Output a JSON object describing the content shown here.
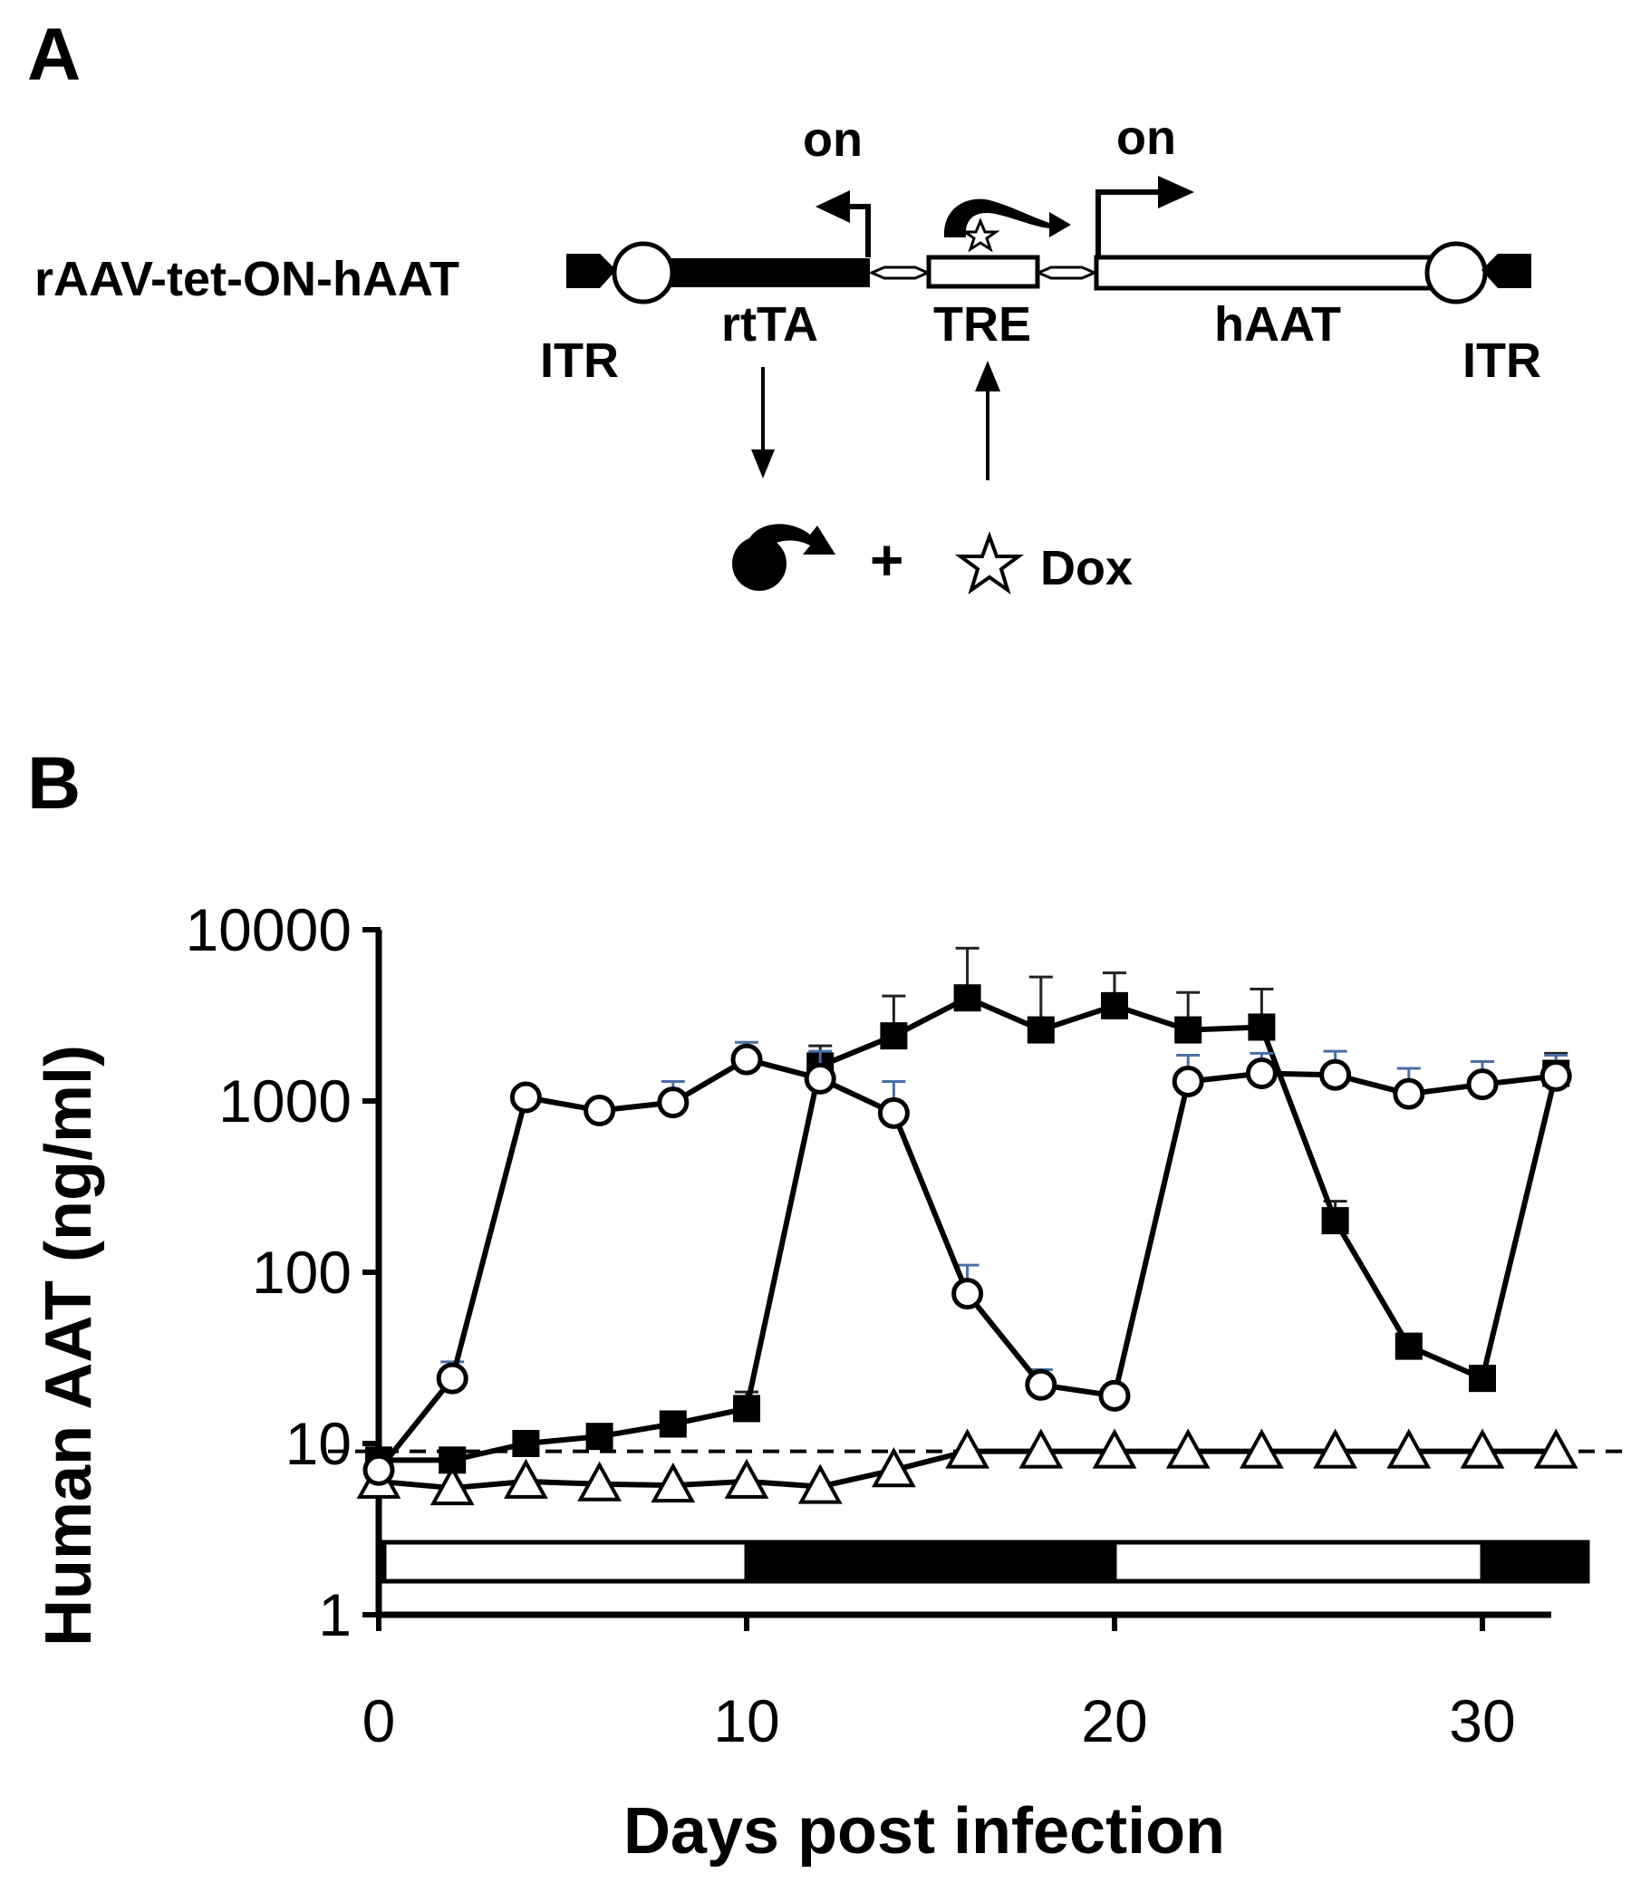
{
  "panel_a": {
    "label": "A",
    "construct_name": "rAAV-tet-ON-hAAT",
    "labels": {
      "itr_left": "ITR",
      "rtta": "rtTA",
      "tre": "TRE",
      "haat": "hAAT",
      "itr_right": "ITR",
      "on_left": "on",
      "on_right": "on",
      "plus": "+",
      "dox": "Dox"
    }
  },
  "panel_b": {
    "label": "B"
  },
  "chart_data": {
    "type": "line",
    "title": "",
    "xlabel": "Days post infection",
    "ylabel": "Human AAT (ng/ml)",
    "xlim": [
      0,
      33
    ],
    "ylim": [
      1,
      10000
    ],
    "y_scale": "log",
    "xticks": [
      0,
      10,
      20,
      30
    ],
    "xtick_labels": [
      "0",
      "10",
      "20",
      "30"
    ],
    "yticks": [
      1,
      10,
      100,
      1000,
      10000
    ],
    "ytick_labels": [
      "1",
      "10",
      "100",
      "1000",
      "10000"
    ],
    "reference_line": {
      "y": 9,
      "style": "dashed"
    },
    "series": [
      {
        "marker": "open-circle",
        "x": [
          0,
          2,
          4,
          6,
          8,
          10,
          12,
          14,
          16,
          18,
          20,
          22,
          24,
          26,
          28,
          30,
          32
        ],
        "y": [
          7,
          24,
          1050,
          880,
          980,
          1750,
          1350,
          850,
          75,
          22,
          19,
          1300,
          1450,
          1420,
          1100,
          1250,
          1400
        ],
        "err": [
          0,
          30,
          0,
          0,
          1300,
          2200,
          1950,
          1300,
          110,
          27,
          0,
          1850,
          1900,
          1950,
          1550,
          1700,
          1850
        ]
      },
      {
        "marker": "filled-square",
        "x": [
          0,
          2,
          4,
          6,
          8,
          10,
          12,
          14,
          16,
          18,
          20,
          22,
          24,
          26,
          28,
          30,
          32
        ],
        "y": [
          8,
          8,
          10,
          11,
          13,
          16,
          1600,
          2400,
          4000,
          2600,
          3600,
          2600,
          2700,
          200,
          37,
          24,
          1450
        ],
        "err": [
          0,
          0,
          0,
          0,
          0,
          20,
          2100,
          4100,
          7800,
          5300,
          5600,
          4300,
          4500,
          260,
          0,
          0,
          1900
        ]
      },
      {
        "marker": "open-triangle",
        "x": [
          0,
          2,
          4,
          6,
          8,
          10,
          12,
          14,
          16,
          18,
          20,
          22,
          24,
          26,
          28,
          30,
          32
        ],
        "y": [
          6,
          5.5,
          6,
          5.8,
          5.7,
          6,
          5.6,
          7,
          9,
          9,
          9,
          9,
          9,
          9,
          9,
          9,
          9
        ],
        "err": [
          0,
          0,
          0,
          0,
          0,
          0,
          0,
          0,
          0,
          0,
          0,
          0,
          0,
          0,
          0,
          0,
          0
        ]
      }
    ],
    "dox_schedule": [
      {
        "from": 0,
        "to": 10,
        "state": "off"
      },
      {
        "from": 10,
        "to": 20,
        "state": "on"
      },
      {
        "from": 20,
        "to": 30,
        "state": "off"
      },
      {
        "from": 30,
        "to": 33,
        "state": "on"
      }
    ],
    "colors": {
      "line": "#000000",
      "error_bar_light": "#4a6fa5",
      "error_bar_dark": "#222222"
    }
  }
}
